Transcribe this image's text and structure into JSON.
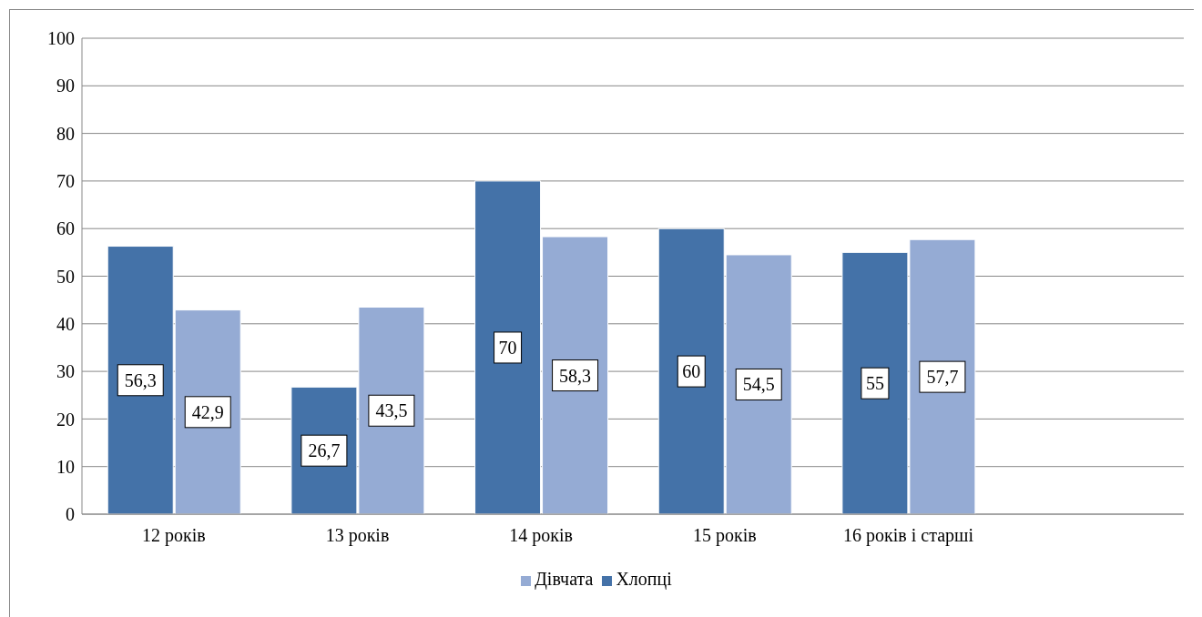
{
  "chart_data": {
    "type": "bar",
    "categories": [
      "12 років",
      "13 років",
      "14 років",
      "15 років",
      "16 років і старші",
      null
    ],
    "series": [
      {
        "name": "Хлопці",
        "color": "#4472a8",
        "values": [
          56.3,
          26.7,
          70,
          60,
          55,
          null
        ],
        "value_labels": [
          "56,3",
          "26,7",
          "70",
          "60",
          "55",
          null
        ]
      },
      {
        "name": "Дівчата",
        "color": "#95abd4",
        "values": [
          42.9,
          43.5,
          58.3,
          54.5,
          57.7,
          null
        ],
        "value_labels": [
          "42,9",
          "43,5",
          "58,3",
          "54,5",
          "57,7",
          null
        ]
      }
    ],
    "ylim": [
      0,
      100
    ],
    "yticks": [
      0,
      10,
      20,
      30,
      40,
      50,
      60,
      70,
      80,
      90,
      100
    ],
    "grid": "y",
    "legend": "bottom"
  }
}
